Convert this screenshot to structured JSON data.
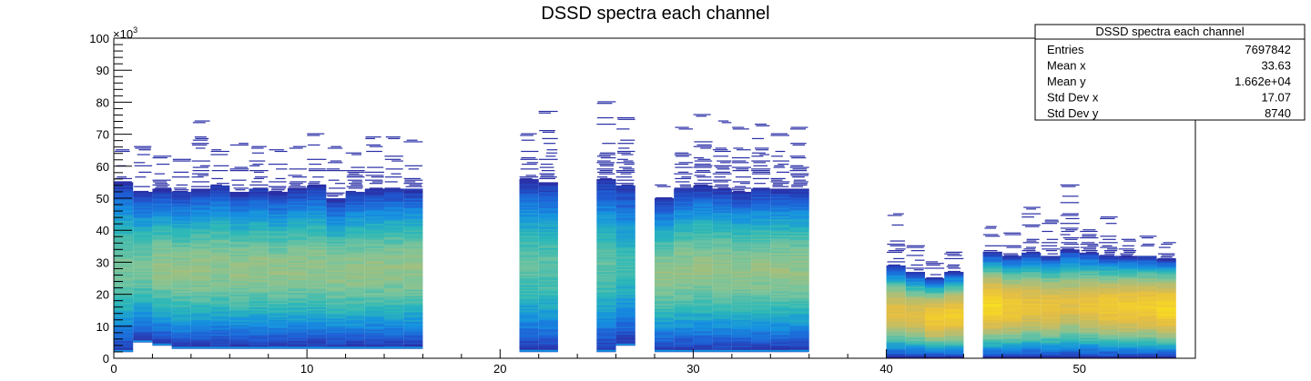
{
  "chart_data": {
    "type": "heatmap",
    "title": "DSSD spectra each channel",
    "xlabel": "",
    "ylabel": "",
    "y_multiplier_label": "×10",
    "y_multiplier_exponent": "3",
    "xlim": [
      0,
      56
    ],
    "ylim": [
      0,
      100
    ],
    "x_ticks": [
      "0",
      "10",
      "20",
      "30",
      "40",
      "50"
    ],
    "y_ticks": [
      "0",
      "10",
      "20",
      "30",
      "40",
      "50",
      "60",
      "70",
      "80",
      "90",
      "100"
    ],
    "palette": "kBird",
    "colors": [
      "#2a2fa6",
      "#1e5fd6",
      "#1591e0",
      "#2cb8b8",
      "#7cc49a",
      "#b8bd6e",
      "#e3bd45",
      "#f3cf2c",
      "#fafa10"
    ],
    "channels": [
      {
        "ch": 0,
        "top": 65,
        "bulk_top": 55,
        "bulk_bottom": 2,
        "intensity": 0.5
      },
      {
        "ch": 1,
        "top": 66,
        "bulk_top": 52,
        "bulk_bottom": 5,
        "intensity": 0.5
      },
      {
        "ch": 2,
        "top": 63,
        "bulk_top": 53,
        "bulk_bottom": 4,
        "intensity": 0.55
      },
      {
        "ch": 3,
        "top": 62,
        "bulk_top": 52,
        "bulk_bottom": 3,
        "intensity": 0.55
      },
      {
        "ch": 4,
        "top": 74,
        "bulk_top": 53,
        "bulk_bottom": 3,
        "intensity": 0.55
      },
      {
        "ch": 5,
        "top": 65,
        "bulk_top": 54,
        "bulk_bottom": 3,
        "intensity": 0.55
      },
      {
        "ch": 6,
        "top": 67,
        "bulk_top": 52,
        "bulk_bottom": 3,
        "intensity": 0.55
      },
      {
        "ch": 7,
        "top": 66,
        "bulk_top": 53,
        "bulk_bottom": 3,
        "intensity": 0.55
      },
      {
        "ch": 8,
        "top": 65,
        "bulk_top": 52,
        "bulk_bottom": 3,
        "intensity": 0.55
      },
      {
        "ch": 9,
        "top": 66,
        "bulk_top": 53,
        "bulk_bottom": 3,
        "intensity": 0.55
      },
      {
        "ch": 10,
        "top": 70,
        "bulk_top": 54,
        "bulk_bottom": 3,
        "intensity": 0.55
      },
      {
        "ch": 11,
        "top": 66,
        "bulk_top": 50,
        "bulk_bottom": 3,
        "intensity": 0.55
      },
      {
        "ch": 12,
        "top": 64,
        "bulk_top": 52,
        "bulk_bottom": 3,
        "intensity": 0.55
      },
      {
        "ch": 13,
        "top": 69,
        "bulk_top": 53,
        "bulk_bottom": 3,
        "intensity": 0.55
      },
      {
        "ch": 14,
        "top": 69,
        "bulk_top": 53,
        "bulk_bottom": 3,
        "intensity": 0.55
      },
      {
        "ch": 15,
        "top": 68,
        "bulk_top": 53,
        "bulk_bottom": 3,
        "intensity": 0.55
      },
      {
        "ch": 21,
        "top": 70,
        "bulk_top": 56,
        "bulk_bottom": 2,
        "intensity": 0.45
      },
      {
        "ch": 22,
        "top": 77,
        "bulk_top": 55,
        "bulk_bottom": 2,
        "intensity": 0.45
      },
      {
        "ch": 25,
        "top": 80,
        "bulk_top": 56,
        "bulk_bottom": 2,
        "intensity": 0.45
      },
      {
        "ch": 26,
        "top": 75,
        "bulk_top": 54,
        "bulk_bottom": 4,
        "intensity": 0.4
      },
      {
        "ch": 28,
        "top": 54,
        "bulk_top": 50,
        "bulk_bottom": 2,
        "intensity": 0.55
      },
      {
        "ch": 29,
        "top": 72,
        "bulk_top": 53,
        "bulk_bottom": 2,
        "intensity": 0.55
      },
      {
        "ch": 30,
        "top": 76,
        "bulk_top": 54,
        "bulk_bottom": 2,
        "intensity": 0.55
      },
      {
        "ch": 31,
        "top": 74,
        "bulk_top": 53,
        "bulk_bottom": 2,
        "intensity": 0.55
      },
      {
        "ch": 32,
        "top": 72,
        "bulk_top": 52,
        "bulk_bottom": 2,
        "intensity": 0.55
      },
      {
        "ch": 33,
        "top": 73,
        "bulk_top": 53,
        "bulk_bottom": 2,
        "intensity": 0.55
      },
      {
        "ch": 34,
        "top": 70,
        "bulk_top": 53,
        "bulk_bottom": 2,
        "intensity": 0.55
      },
      {
        "ch": 35,
        "top": 72,
        "bulk_top": 53,
        "bulk_bottom": 2,
        "intensity": 0.55
      },
      {
        "ch": 40,
        "top": 45,
        "bulk_top": 29,
        "bulk_bottom": 0,
        "intensity": 0.75
      },
      {
        "ch": 41,
        "top": 35,
        "bulk_top": 27,
        "bulk_bottom": 0,
        "intensity": 0.75
      },
      {
        "ch": 42,
        "top": 30,
        "bulk_top": 25,
        "bulk_bottom": 0,
        "intensity": 0.85
      },
      {
        "ch": 43,
        "top": 33,
        "bulk_top": 27,
        "bulk_bottom": 0,
        "intensity": 0.85
      },
      {
        "ch": 45,
        "top": 41,
        "bulk_top": 33,
        "bulk_bottom": 0,
        "intensity": 0.9
      },
      {
        "ch": 46,
        "top": 39,
        "bulk_top": 32,
        "bulk_bottom": 0,
        "intensity": 0.85
      },
      {
        "ch": 47,
        "top": 47,
        "bulk_top": 33,
        "bulk_bottom": 0,
        "intensity": 0.8
      },
      {
        "ch": 48,
        "top": 43,
        "bulk_top": 32,
        "bulk_bottom": 0,
        "intensity": 0.8
      },
      {
        "ch": 49,
        "top": 54,
        "bulk_top": 34,
        "bulk_bottom": 0,
        "intensity": 0.75
      },
      {
        "ch": 50,
        "top": 40,
        "bulk_top": 33,
        "bulk_bottom": 0,
        "intensity": 0.8
      },
      {
        "ch": 51,
        "top": 44,
        "bulk_top": 32,
        "bulk_bottom": 0,
        "intensity": 0.85
      },
      {
        "ch": 52,
        "top": 37,
        "bulk_top": 32,
        "bulk_bottom": 0,
        "intensity": 0.85
      },
      {
        "ch": 53,
        "top": 38,
        "bulk_top": 32,
        "bulk_bottom": 0,
        "intensity": 0.85
      },
      {
        "ch": 54,
        "top": 36,
        "bulk_top": 31,
        "bulk_bottom": 0,
        "intensity": 0.9
      }
    ]
  },
  "stats_box": {
    "title": "DSSD spectra each channel",
    "rows": [
      {
        "label": "Entries",
        "value": "7697842"
      },
      {
        "label": "Mean x",
        "value": "33.63"
      },
      {
        "label": "Mean y",
        "value": "1.662e+04"
      },
      {
        "label": "Std Dev x",
        "value": "17.07"
      },
      {
        "label": "Std Dev y",
        "value": "8740"
      }
    ]
  }
}
